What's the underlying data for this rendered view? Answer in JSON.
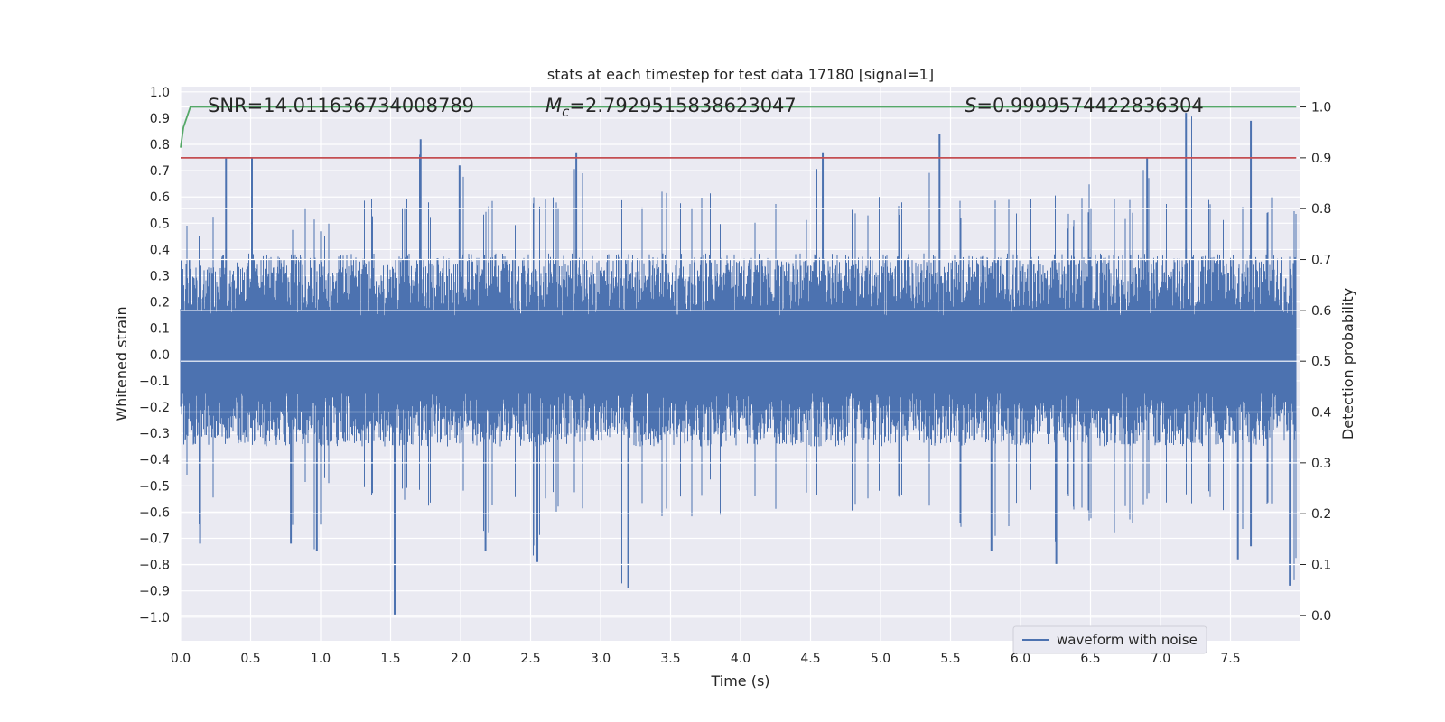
{
  "chart_data": {
    "type": "line",
    "title": "stats at each timestep for test data 17180 [signal=1]",
    "xlabel": "Time (s)",
    "ylabel_left": "Whitened strain",
    "ylabel_right": "Detection probability",
    "xlim": [
      0.0,
      8.0
    ],
    "ylim_left": [
      -1.09,
      1.02
    ],
    "ylim_right": [
      -0.05,
      1.04
    ],
    "x_ticks": [
      "0.0",
      "0.5",
      "1.0",
      "1.5",
      "2.0",
      "2.5",
      "3.0",
      "3.5",
      "4.0",
      "4.5",
      "5.0",
      "5.5",
      "6.0",
      "6.5",
      "7.0",
      "7.5"
    ],
    "y_ticks_left": [
      "1.0",
      "0.9",
      "0.8",
      "0.7",
      "0.6",
      "0.5",
      "0.4",
      "0.3",
      "0.2",
      "0.1",
      "0.0",
      "−0.1",
      "−0.2",
      "−0.3",
      "−0.4",
      "−0.5",
      "−0.6",
      "−0.7",
      "−0.8",
      "−0.9",
      "−1.0"
    ],
    "y_ticks_right": [
      "1.0",
      "0.9",
      "0.8",
      "0.7",
      "0.6",
      "0.5",
      "0.4",
      "0.3",
      "0.2",
      "0.1",
      "0.0"
    ],
    "grid": true,
    "legend_position": "lower-right",
    "annotations": {
      "snr_label": "SNR=14.011636734008789",
      "mc_prefix": "M",
      "mc_sub": "c",
      "mc_value": "=2.7929515838623047",
      "s_prefix": "S",
      "s_value": "=0.9999574422836304"
    },
    "series": [
      {
        "name": "waveform with noise",
        "axis": "left",
        "color": "#4c72b0",
        "envelope_top": [
          0.52,
          0.5,
          0.61,
          0.75,
          0.55,
          0.75,
          0.6,
          0.6,
          0.55,
          0.6,
          0.55,
          0.5,
          0.6,
          0.55,
          0.6,
          0.5,
          0.62,
          0.65,
          0.82,
          0.6,
          0.62,
          0.72,
          0.6,
          0.58,
          0.6,
          0.55,
          0.65,
          0.6,
          0.62,
          0.6,
          0.77,
          0.6,
          0.65,
          0.62,
          0.6,
          0.6,
          0.55,
          0.62,
          0.6,
          0.6,
          0.62,
          0.55,
          0.6,
          0.6,
          0.55,
          0.65,
          0.6,
          0.57,
          0.6,
          0.77,
          0.62,
          0.6,
          0.6,
          0.6,
          0.6,
          0.6,
          0.6,
          0.7,
          0.84,
          0.62,
          0.6,
          0.62,
          0.6,
          0.6,
          0.6,
          0.6,
          0.6,
          0.62,
          0.55,
          0.6,
          0.65,
          0.6,
          0.6,
          0.63,
          0.75,
          0.63,
          0.6,
          0.92,
          0.62,
          0.6,
          0.6,
          0.6,
          0.89,
          0.62,
          0.6,
          0.6
        ],
        "envelope_bottom": [
          -0.49,
          -0.72,
          -0.55,
          -0.66,
          -0.52,
          -0.55,
          -0.52,
          -0.55,
          -0.72,
          -0.55,
          -0.75,
          -0.55,
          -0.6,
          -0.52,
          -0.55,
          -0.57,
          -0.99,
          -0.58,
          -0.55,
          -0.6,
          -0.58,
          -0.55,
          -0.68,
          -0.75,
          -0.62,
          -0.62,
          -0.65,
          -0.79,
          -0.6,
          -0.6,
          -0.6,
          -0.6,
          -0.62,
          -0.68,
          -0.89,
          -0.65,
          -0.69,
          -0.62,
          -0.6,
          -0.65,
          -0.55,
          -0.68,
          -0.6,
          -0.68,
          -0.6,
          -0.65,
          -0.7,
          -0.6,
          -0.6,
          -0.6,
          -0.6,
          -0.6,
          -0.6,
          -0.6,
          -0.6,
          -0.6,
          -0.6,
          -0.6,
          -0.6,
          -0.65,
          -0.68,
          -0.7,
          -0.75,
          -0.69,
          -0.62,
          -0.6,
          -0.6,
          -0.8,
          -0.6,
          -0.62,
          -0.65,
          -0.7,
          -0.6,
          -0.68,
          -0.6,
          -0.65,
          -0.6,
          -0.6,
          -0.7,
          -0.6,
          -0.6,
          -0.78,
          -0.73,
          -0.6,
          -0.6,
          -0.88
        ]
      },
      {
        "name": "",
        "axis": "right",
        "color": "#55a868",
        "x": [
          0.0,
          0.02,
          0.07,
          0.12,
          7.97
        ],
        "y": [
          0.92,
          0.96,
          1.0,
          1.0,
          1.0
        ]
      },
      {
        "name": "",
        "axis": "right",
        "color": "#c44e52",
        "x": [
          0.0,
          7.97
        ],
        "y": [
          0.9,
          0.9
        ]
      }
    ]
  }
}
